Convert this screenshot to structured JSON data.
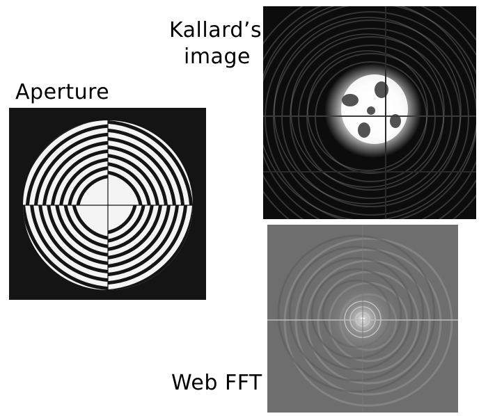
{
  "labels": {
    "aperture": "Aperture",
    "kallard_line1": "Kallard’s",
    "kallard_line2": "image",
    "web_fft": "Web FFT"
  },
  "colors": {
    "background": "#ffffff",
    "aperture_bg": "#141414",
    "aperture_fg": "#f4f4f4",
    "kallard_bg": "#0c0c0c",
    "fft_bg": "#6e6e6e"
  },
  "figures": {
    "aperture": "aperture-image",
    "kallard": "kallard-image",
    "fft": "web-fft-image"
  }
}
